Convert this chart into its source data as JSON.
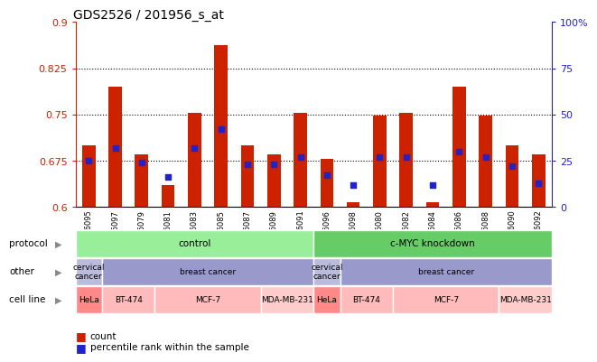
{
  "title": "GDS2526 / 201956_s_at",
  "samples": [
    "GSM136095",
    "GSM136097",
    "GSM136079",
    "GSM136081",
    "GSM136083",
    "GSM136085",
    "GSM136087",
    "GSM136089",
    "GSM136091",
    "GSM136096",
    "GSM136098",
    "GSM136080",
    "GSM136082",
    "GSM136084",
    "GSM136086",
    "GSM136088",
    "GSM136090",
    "GSM136092"
  ],
  "bar_values": [
    0.7,
    0.795,
    0.685,
    0.635,
    0.752,
    0.862,
    0.7,
    0.685,
    0.752,
    0.678,
    0.608,
    0.748,
    0.752,
    0.608,
    0.795,
    0.748,
    0.7,
    0.685
  ],
  "blue_values_right": [
    25,
    32,
    24,
    16,
    32,
    42,
    23,
    23,
    27,
    17,
    12,
    27,
    27,
    12,
    30,
    27,
    22,
    13
  ],
  "ylim_left": [
    0.6,
    0.9
  ],
  "ylim_right": [
    0,
    100
  ],
  "yticks_left": [
    0.6,
    0.675,
    0.75,
    0.825,
    0.9
  ],
  "yticks_right": [
    0,
    25,
    50,
    75,
    100
  ],
  "ytick_labels_left": [
    "0.6",
    "0.675",
    "0.75",
    "0.825",
    "0.9"
  ],
  "ytick_labels_right": [
    "0",
    "25",
    "50",
    "75",
    "100%"
  ],
  "hlines": [
    0.675,
    0.75,
    0.825
  ],
  "bar_color": "#CC2200",
  "blue_color": "#2222CC",
  "bar_width": 0.5,
  "protocol_color_control": "#99EE99",
  "protocol_color_knockdown": "#66CC66",
  "protocol_segments": [
    [
      "control",
      0,
      9
    ],
    [
      "c-MYC knockdown",
      9,
      18
    ]
  ],
  "other_segments": [
    [
      "cervical\ncancer",
      0,
      1,
      "#BBBBDD"
    ],
    [
      "breast cancer",
      1,
      9,
      "#9999CC"
    ],
    [
      "cervical\ncancer",
      9,
      10,
      "#BBBBDD"
    ],
    [
      "breast cancer",
      10,
      18,
      "#9999CC"
    ]
  ],
  "cell_segments": [
    [
      "HeLa",
      0,
      1,
      "#FF8888"
    ],
    [
      "BT-474",
      1,
      3,
      "#FFBBBB"
    ],
    [
      "MCF-7",
      3,
      7,
      "#FFBBBB"
    ],
    [
      "MDA-MB-231",
      7,
      9,
      "#FFCCCC"
    ],
    [
      "HeLa",
      9,
      10,
      "#FF8888"
    ],
    [
      "BT-474",
      10,
      12,
      "#FFBBBB"
    ],
    [
      "MCF-7",
      12,
      16,
      "#FFBBBB"
    ],
    [
      "MDA-MB-231",
      16,
      18,
      "#FFCCCC"
    ]
  ],
  "row_labels": [
    "protocol",
    "other",
    "cell line"
  ],
  "row_arrow": "▶",
  "legend_items": [
    "count",
    "percentile rank within the sample"
  ],
  "legend_colors": [
    "#CC2200",
    "#2222CC"
  ]
}
